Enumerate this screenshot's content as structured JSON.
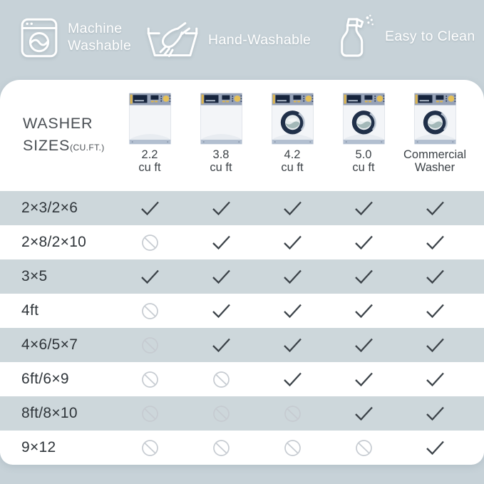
{
  "colors": {
    "background": "#c7d2d8",
    "card": "#ffffff",
    "stripe": "#cdd7db",
    "check": "#3c4349",
    "no": "#c6cbd1",
    "feature_text": "#ffffff",
    "heading_text": "#4a4f54",
    "label_text": "#2f353a",
    "washer_navy": "#203049",
    "washer_panel": "#96a2b7",
    "washer_accent": "#e0b750"
  },
  "features": [
    {
      "icon": "washing-machine-icon",
      "label": "Machine Washable"
    },
    {
      "icon": "hand-wash-icon",
      "label": "Hand-Washable"
    },
    {
      "icon": "spray-bottle-icon",
      "label": "Easy to Clean"
    }
  ],
  "table": {
    "corner_line1": "WASHER",
    "corner_line2": "SIZES",
    "corner_sub": "(CU.FT.)",
    "columns": [
      {
        "label_line1": "2.2",
        "label_line2": "cu ft",
        "type": "top-load"
      },
      {
        "label_line1": "3.8",
        "label_line2": "cu ft",
        "type": "top-load"
      },
      {
        "label_line1": "4.2",
        "label_line2": "cu ft",
        "type": "front-load"
      },
      {
        "label_line1": "5.0",
        "label_line2": "cu ft",
        "type": "front-load"
      },
      {
        "label_line1": "Commercial",
        "label_line2": "Washer",
        "type": "front-load"
      }
    ],
    "rows": [
      {
        "label": "2×3/2×6",
        "cells": [
          "yes",
          "yes",
          "yes",
          "yes",
          "yes"
        ]
      },
      {
        "label": "2×8/2×10",
        "cells": [
          "no",
          "yes",
          "yes",
          "yes",
          "yes"
        ]
      },
      {
        "label": "3×5",
        "cells": [
          "yes",
          "yes",
          "yes",
          "yes",
          "yes"
        ]
      },
      {
        "label": "4ft",
        "cells": [
          "no",
          "yes",
          "yes",
          "yes",
          "yes"
        ]
      },
      {
        "label": "4×6/5×7",
        "cells": [
          "no",
          "yes",
          "yes",
          "yes",
          "yes"
        ]
      },
      {
        "label": "6ft/6×9",
        "cells": [
          "no",
          "no",
          "yes",
          "yes",
          "yes"
        ]
      },
      {
        "label": "8ft/8×10",
        "cells": [
          "no",
          "no",
          "no",
          "yes",
          "yes"
        ]
      },
      {
        "label": "9×12",
        "cells": [
          "no",
          "no",
          "no",
          "no",
          "yes"
        ]
      }
    ]
  },
  "chart_data": {
    "type": "table",
    "title": "WASHER SIZES (CU.FT.)",
    "columns": [
      "2.2 cu ft",
      "3.8 cu ft",
      "4.2 cu ft",
      "5.0 cu ft",
      "Commercial Washer"
    ],
    "row_labels": [
      "2×3/2×6",
      "2×8/2×10",
      "3×5",
      "4ft",
      "4×6/5×7",
      "6ft/6×9",
      "8ft/8×10",
      "9×12"
    ],
    "values": [
      [
        1,
        1,
        1,
        1,
        1
      ],
      [
        0,
        1,
        1,
        1,
        1
      ],
      [
        1,
        1,
        1,
        1,
        1
      ],
      [
        0,
        1,
        1,
        1,
        1
      ],
      [
        0,
        1,
        1,
        1,
        1
      ],
      [
        0,
        0,
        1,
        1,
        1
      ],
      [
        0,
        0,
        0,
        1,
        1
      ],
      [
        0,
        0,
        0,
        0,
        1
      ]
    ],
    "value_legend": {
      "1": "check (fits)",
      "0": "crossed circle (does not fit)"
    }
  }
}
